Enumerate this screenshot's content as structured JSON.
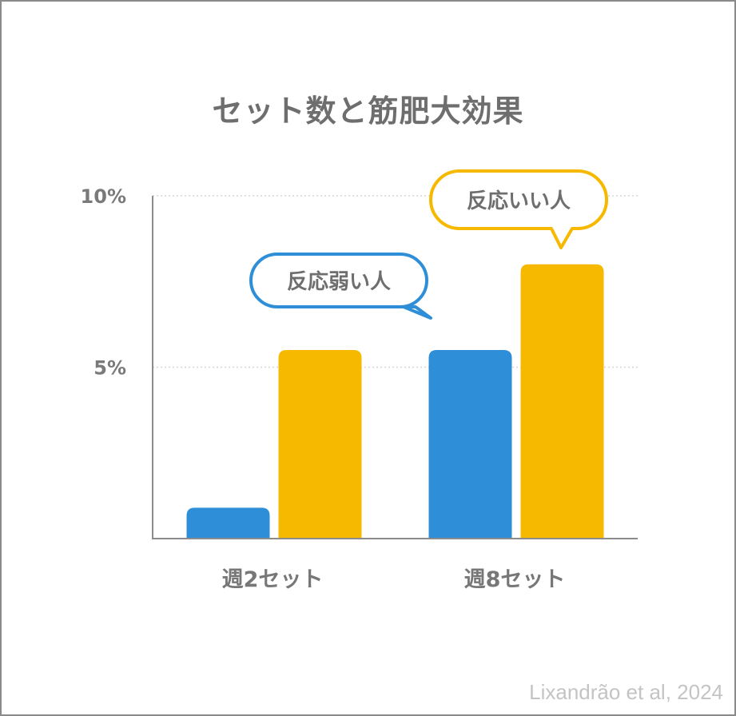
{
  "chart_data": {
    "type": "bar",
    "title": "セット数と筋肥大効果",
    "categories": [
      "週2セット",
      "週8セット"
    ],
    "series": [
      {
        "values": [
          0.9,
          5.5
        ]
      },
      {
        "values": [
          5.5,
          8.0
        ]
      }
    ],
    "ylim": [
      0,
      10
    ],
    "yticks": [
      {
        "value": 10,
        "label": "10%"
      },
      {
        "value": 5,
        "label": "5%"
      }
    ],
    "grid": true,
    "annotations": [
      {
        "text": "反応弱い人",
        "series": 0,
        "category": 1
      },
      {
        "text": "反応いい人",
        "series": 1,
        "category": 1
      }
    ],
    "colors": [
      "#2e8fd8",
      "#f7b800"
    ]
  },
  "source": "Lixandrão et al, 2024"
}
